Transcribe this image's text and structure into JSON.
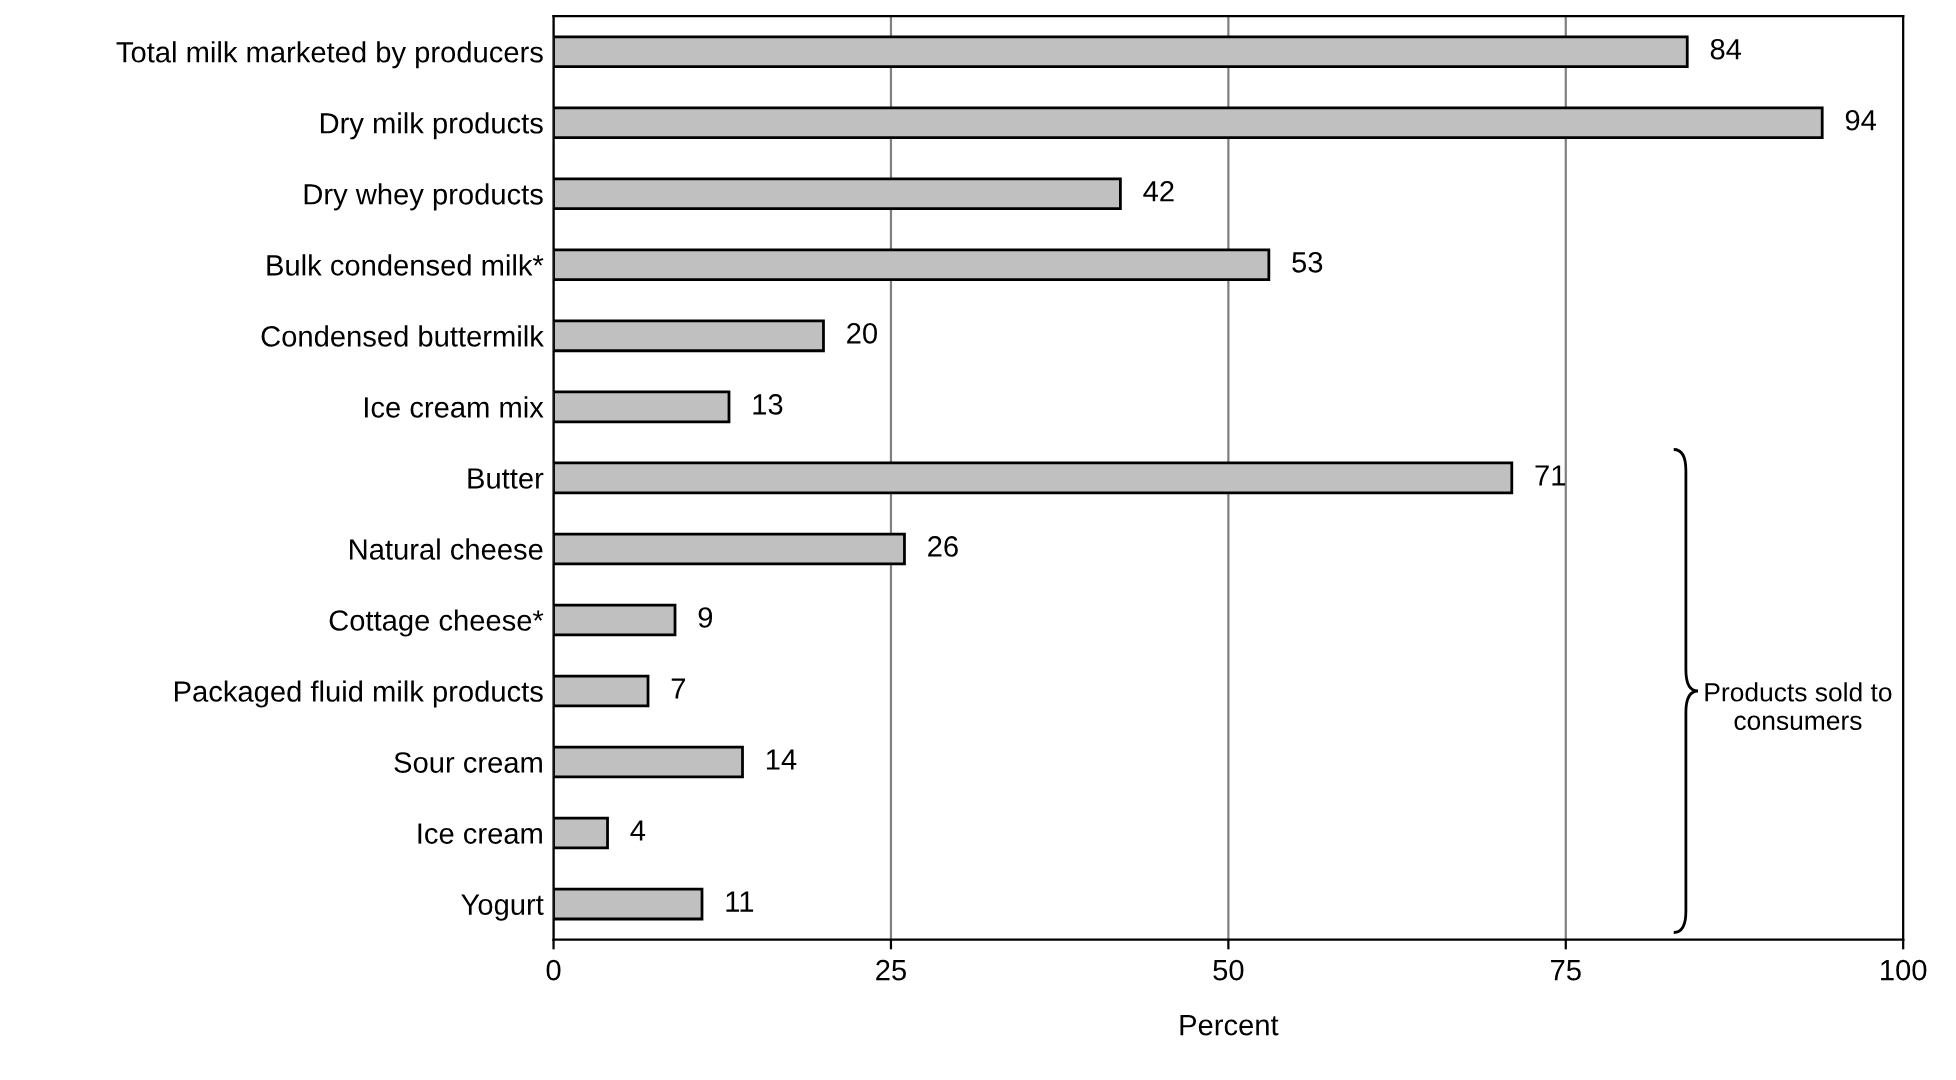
{
  "chart_data": {
    "type": "bar",
    "orientation": "horizontal",
    "xlabel": "Percent",
    "categories": [
      "Total milk marketed by producers",
      "Dry milk products",
      "Dry whey products",
      "Bulk condensed milk*",
      "Condensed buttermilk",
      "Ice cream mix",
      "Butter",
      "Natural cheese",
      "Cottage cheese*",
      "Packaged fluid milk products",
      "Sour cream",
      "Ice cream",
      "Yogurt"
    ],
    "values": [
      84,
      94,
      42,
      53,
      20,
      13,
      71,
      26,
      9,
      7,
      14,
      4,
      11
    ],
    "color": "#c0c0c0",
    "xlim": [
      0,
      100
    ],
    "xticks": [
      0,
      25,
      50,
      75,
      100
    ],
    "grid": "x",
    "data_labels": true,
    "annotations": [
      "Products sold to\nconsumers"
    ]
  }
}
